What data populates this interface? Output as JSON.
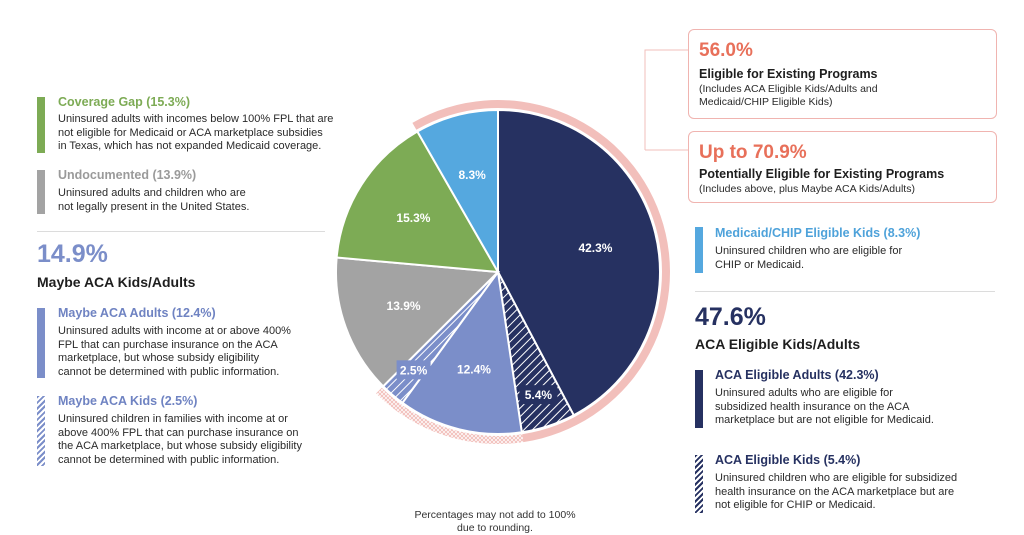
{
  "chart_data": {
    "type": "pie",
    "slices": [
      {
        "label": "42.3%",
        "value": 42.3,
        "color": "#263161",
        "pattern": "solid"
      },
      {
        "label": "5.4%",
        "value": 5.4,
        "color": "#263161",
        "pattern": "hatch"
      },
      {
        "label": "12.4%",
        "value": 12.4,
        "color": "#7b8ec9",
        "pattern": "solid"
      },
      {
        "label": "2.5%",
        "value": 2.5,
        "color": "#7b8ec9",
        "pattern": "hatch"
      },
      {
        "label": "13.9%",
        "value": 13.9,
        "color": "#a3a3a3",
        "pattern": "solid"
      },
      {
        "label": "15.3%",
        "value": 15.3,
        "color": "#7dab55",
        "pattern": "solid"
      },
      {
        "label": "8.3%",
        "value": 8.3,
        "color": "#55a8df",
        "pattern": "solid"
      }
    ],
    "note": "Percentages may not add to 100% due to rounding."
  },
  "colors": {
    "navy": "#263161",
    "slate": "#7b8ec9",
    "gray": "#a3a3a3",
    "green": "#7dab55",
    "sky": "#55a8df",
    "coral": "#e8705a",
    "pink": "#f2bfbb"
  },
  "left": {
    "coverage_gap": {
      "title": "Coverage Gap (15.3%)",
      "desc": [
        "Uninsured adults with incomes below 100% FPL that are",
        "not eligible for Medicaid or ACA marketplace subsidies",
        "in Texas, which has not expanded Medicaid coverage."
      ]
    },
    "undocumented": {
      "title": "Undocumented (13.9%)",
      "desc": [
        "Uninsured adults and children who are",
        "not legally present in the United States."
      ]
    },
    "maybe_total": {
      "pct": "14.9%",
      "label": "Maybe ACA Kids/Adults"
    },
    "maybe_adults": {
      "title": "Maybe ACA Adults (12.4%)",
      "desc": [
        "Uninsured adults with income at or above 400%",
        "FPL that can purchase insurance on the ACA",
        "marketplace, but whose subsidy eligibility",
        "cannot be determined with public information."
      ]
    },
    "maybe_kids": {
      "title": "Maybe ACA Kids (2.5%)",
      "desc": [
        "Uninsured children in families with income at or",
        "above 400% FPL that can purchase insurance on",
        "the ACA marketplace, but whose subsidy eligibility",
        "cannot be determined with public information."
      ]
    }
  },
  "right": {
    "eligible": {
      "pct": "56.0%",
      "label": "Eligible for Existing Programs",
      "desc": [
        "(Includes ACA Eligible Kids/Adults and",
        "Medicaid/CHIP Eligible Kids)"
      ]
    },
    "potential": {
      "pct": "Up to 70.9%",
      "label": "Potentially Eligible for Existing Programs",
      "desc": [
        "(Includes above, plus Maybe ACA Kids/Adults)"
      ]
    },
    "medicaid_kids": {
      "title": "Medicaid/CHIP Eligible Kids (8.3%)",
      "desc": [
        "Uninsured children who are eligible for",
        "CHIP or Medicaid."
      ]
    },
    "aca_total": {
      "pct": "47.6%",
      "label": "ACA Eligible Kids/Adults"
    },
    "aca_adults": {
      "title": "ACA Eligible Adults (42.3%)",
      "desc": [
        "Uninsured adults who are eligible for",
        "subsidized health insurance on the ACA",
        "marketplace but are not eligible for Medicaid."
      ]
    },
    "aca_kids": {
      "title": "ACA Eligible Kids (5.4%)",
      "desc": [
        "Uninsured children who are eligible for subsidized",
        "health insurance on the ACA marketplace but are",
        "not eligible for CHIP or Medicaid."
      ]
    }
  }
}
